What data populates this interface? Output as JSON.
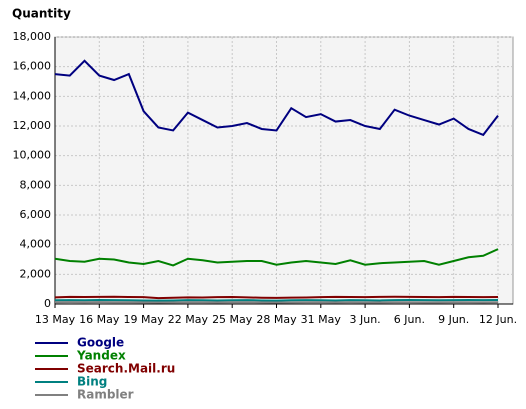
{
  "chart_data": {
    "type": "line",
    "title": "Quantity",
    "categories": [
      "13 May",
      null,
      null,
      "16 May",
      null,
      null,
      "19 May",
      null,
      null,
      "22 May",
      null,
      null,
      "25 May",
      null,
      null,
      "28 May",
      null,
      null,
      "31 May",
      null,
      null,
      "3 Jun.",
      null,
      null,
      "6 Jun.",
      null,
      null,
      "9 Jun.",
      null,
      null,
      "12 Jun."
    ],
    "series": [
      {
        "name": "Google",
        "color": "#000080",
        "values": [
          15500,
          15400,
          16400,
          15400,
          15100,
          15500,
          13000,
          11900,
          11700,
          12900,
          12400,
          11900,
          12000,
          12200,
          11800,
          11700,
          13200,
          12600,
          12800,
          12300,
          12400,
          12000,
          11800,
          13100,
          12700,
          12400,
          12100,
          12500,
          11800,
          11400,
          12700
        ]
      },
      {
        "name": "Yandex",
        "color": "#008000",
        "values": [
          3050,
          2900,
          2850,
          3050,
          3000,
          2800,
          2700,
          2900,
          2600,
          3050,
          2950,
          2800,
          2850,
          2900,
          2900,
          2650,
          2800,
          2900,
          2800,
          2700,
          2950,
          2650,
          2750,
          2800,
          2850,
          2900,
          2650,
          2900,
          3150,
          3250,
          3700
        ]
      },
      {
        "name": "Search.Mail.ru",
        "color": "#800000",
        "values": [
          450,
          480,
          470,
          480,
          490,
          470,
          460,
          400,
          420,
          450,
          440,
          460,
          470,
          450,
          420,
          410,
          430,
          440,
          460,
          480,
          470,
          460,
          480,
          490,
          480,
          470,
          460,
          480,
          470,
          460,
          470
        ]
      },
      {
        "name": "Bing",
        "color": "#008080",
        "values": [
          250,
          260,
          250,
          270,
          260,
          250,
          240,
          230,
          240,
          260,
          250,
          240,
          250,
          260,
          240,
          230,
          250,
          260,
          250,
          240,
          260,
          250,
          240,
          260,
          270,
          260,
          250,
          260,
          270,
          260,
          270
        ]
      },
      {
        "name": "Rambler",
        "color": "#808080",
        "values": [
          120,
          130,
          120,
          130,
          120,
          120,
          110,
          100,
          110,
          120,
          120,
          110,
          120,
          120,
          110,
          100,
          110,
          120,
          120,
          110,
          120,
          110,
          110,
          120,
          120,
          110,
          110,
          120,
          120,
          110,
          120
        ]
      }
    ],
    "ylim": [
      0,
      18000
    ],
    "yticks": [
      0,
      {
        "value": 2000,
        "label": "2,000"
      },
      {
        "value": 4000,
        "label": "4,000"
      },
      {
        "value": 6000,
        "label": "6,000"
      },
      {
        "value": 8000,
        "label": "8,000"
      },
      {
        "value": 10000,
        "label": "10,000"
      },
      {
        "value": 12000,
        "label": "12,000"
      },
      {
        "value": 14000,
        "label": "14,000"
      },
      {
        "value": 16000,
        "label": "16,000"
      },
      {
        "value": 18000,
        "label": "18,000"
      }
    ],
    "grid": true
  }
}
